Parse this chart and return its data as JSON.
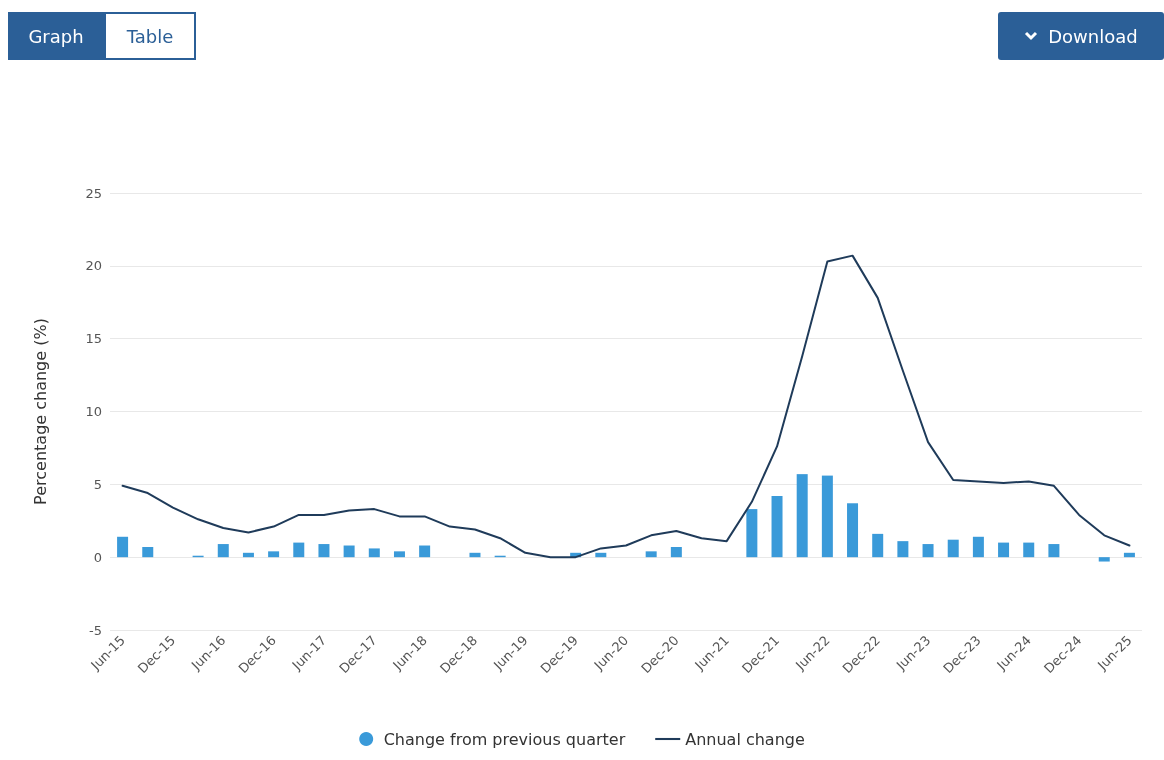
{
  "chart_data": {
    "type": "bar",
    "ylabel": "Percentage change (%)",
    "annotations": [
      "Graph",
      "Table",
      "Download"
    ],
    "categories": [
      "Jun-15",
      null,
      "Dec-15",
      null,
      "Jun-16",
      null,
      "Dec-16",
      null,
      "Jun-17",
      null,
      "Dec-17",
      null,
      "Jun-18",
      null,
      "Dec-18",
      null,
      "Jun-19",
      null,
      "Dec-19",
      null,
      "Jun-20",
      null,
      "Dec-20",
      null,
      "Jun-21",
      null,
      "Dec-21",
      null,
      "Jun-22",
      null,
      "Dec-22",
      null,
      "Jun-23",
      null,
      "Dec-23",
      null,
      "Jun-24",
      null,
      "Dec-24",
      null,
      "Jun-25"
    ],
    "series": [
      {
        "name": "Change from previous quarter",
        "color": "#3a9ad9",
        "values": [
          1.4,
          0.7,
          0.0,
          0.1,
          0.9,
          0.3,
          0.4,
          1.0,
          0.9,
          0.8,
          0.6,
          0.4,
          0.8,
          0.0,
          0.3,
          0.1,
          0.0,
          0.0,
          0.3,
          0.3,
          0.0,
          0.4,
          0.7,
          0.0,
          0.0,
          3.3,
          4.2,
          5.7,
          5.6,
          3.7,
          1.6,
          1.1,
          0.9,
          1.2,
          1.4,
          1.0,
          1.0,
          0.9,
          0.0,
          -0.3,
          0.3
        ]
      },
      {
        "name": "Annual change",
        "type": "line",
        "color": "#1f3b5a",
        "values": [
          4.9,
          4.4,
          3.4,
          2.6,
          2.0,
          1.7,
          2.1,
          2.9,
          2.9,
          3.2,
          3.3,
          2.8,
          2.8,
          2.1,
          1.9,
          1.3,
          0.3,
          0.0,
          0.0,
          0.6,
          0.8,
          1.5,
          1.8,
          1.3,
          1.1,
          3.8,
          7.6,
          13.8,
          20.3,
          20.7,
          17.8,
          12.8,
          7.9,
          5.3,
          5.2,
          5.1,
          5.2,
          4.9,
          2.9,
          1.5,
          0.8
        ]
      }
    ],
    "ylim": [
      -5,
      25
    ],
    "yticks": [
      -5,
      0,
      5,
      10,
      15,
      20,
      25
    ],
    "grid": "y",
    "legend": "bottom",
    "marker": "none",
    "line_style": "solid"
  }
}
